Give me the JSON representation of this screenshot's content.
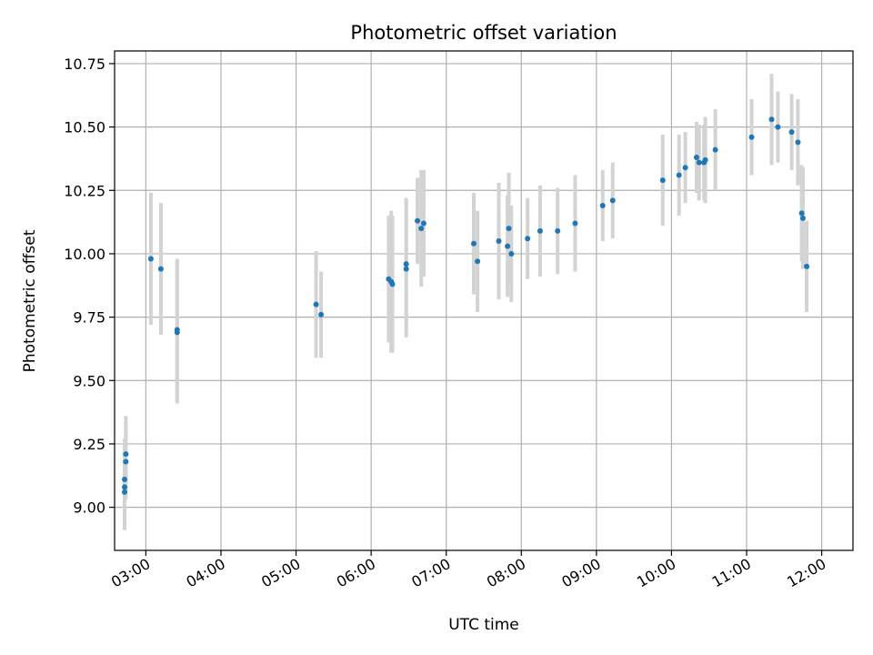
{
  "chart_data": {
    "type": "scatter",
    "title": "Photometric offset variation",
    "xlabel": "UTC time",
    "ylabel": "Photometric offset",
    "xlim": [
      "02:35",
      "12:25"
    ],
    "ylim": [
      8.83,
      10.8
    ],
    "x_ticks": [
      "03:00",
      "04:00",
      "05:00",
      "06:00",
      "07:00",
      "08:00",
      "09:00",
      "10:00",
      "11:00",
      "12:00"
    ],
    "y_ticks": [
      "9.00",
      "9.25",
      "9.50",
      "9.75",
      "10.00",
      "10.25",
      "10.50",
      "10.75"
    ],
    "grid": true,
    "legend": "none",
    "marker_color": "#1f77b4",
    "errorbar_color": "#d3d3d3",
    "series": [
      {
        "x": [
          "02:43",
          "02:43",
          "02:43",
          "02:44",
          "02:44",
          "03:04",
          "03:12",
          "03:25",
          "03:25",
          "05:16",
          "05:20",
          "06:14",
          "06:16",
          "06:17",
          "06:28",
          "06:28",
          "06:37",
          "06:40",
          "06:42",
          "07:22",
          "07:25",
          "07:42",
          "07:49",
          "07:50",
          "07:52",
          "08:05",
          "08:15",
          "08:29",
          "08:43",
          "09:05",
          "09:13",
          "09:53",
          "10:06",
          "10:11",
          "10:20",
          "10:22",
          "10:26",
          "10:27",
          "10:35",
          "11:04",
          "11:20",
          "11:25",
          "11:36",
          "11:41",
          "11:44",
          "11:45",
          "11:48"
        ],
        "y": [
          9.08,
          9.11,
          9.06,
          9.18,
          9.21,
          9.98,
          9.94,
          9.7,
          9.69,
          9.8,
          9.76,
          9.9,
          9.89,
          9.88,
          9.94,
          9.96,
          10.13,
          10.1,
          10.12,
          10.04,
          9.97,
          10.05,
          10.03,
          10.1,
          10.0,
          10.06,
          10.09,
          10.09,
          10.12,
          10.19,
          10.21,
          10.29,
          10.31,
          10.34,
          10.38,
          10.36,
          10.36,
          10.37,
          10.41,
          10.46,
          10.53,
          10.5,
          10.48,
          10.44,
          10.16,
          10.14,
          9.95
        ],
        "err": [
          0.16,
          0.16,
          0.15,
          0.15,
          0.15,
          0.26,
          0.26,
          0.28,
          0.28,
          0.21,
          0.17,
          0.25,
          0.28,
          0.27,
          0.27,
          0.26,
          0.17,
          0.23,
          0.21,
          0.2,
          0.2,
          0.23,
          0.2,
          0.22,
          0.19,
          0.16,
          0.18,
          0.17,
          0.19,
          0.14,
          0.15,
          0.18,
          0.16,
          0.14,
          0.14,
          0.15,
          0.15,
          0.17,
          0.16,
          0.15,
          0.18,
          0.14,
          0.15,
          0.17,
          0.19,
          0.2,
          0.18
        ]
      }
    ]
  }
}
